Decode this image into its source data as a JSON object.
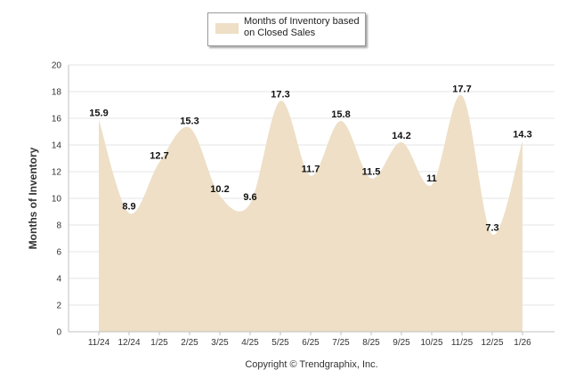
{
  "chart_data": {
    "type": "area",
    "categories": [
      "11/24",
      "12/24",
      "1/25",
      "2/25",
      "3/25",
      "4/25",
      "5/25",
      "6/25",
      "7/25",
      "8/25",
      "9/25",
      "10/25",
      "11/25",
      "12/25",
      "1/26"
    ],
    "series": [
      {
        "name": "Months of Inventory based on Closed Sales",
        "values": [
          15.9,
          8.9,
          12.7,
          15.3,
          10.2,
          9.6,
          17.3,
          11.7,
          15.8,
          11.5,
          14.2,
          11,
          17.7,
          7.3,
          14.3
        ],
        "labels": [
          "15.9",
          "8.9",
          "12.7",
          "15.3",
          "10.2",
          "9.6",
          "17.3",
          "11.7",
          "15.8",
          "11.5",
          "14.2",
          "11",
          "17.7",
          "7.3",
          "14.3"
        ],
        "color": "#eedfc6"
      }
    ],
    "yticks": [
      "0",
      "2",
      "4",
      "6",
      "8",
      "10",
      "12",
      "14",
      "16",
      "18",
      "20"
    ],
    "ylim": [
      0,
      20
    ],
    "ylabel": "Months of Inventory",
    "xlabel": "",
    "grid": true,
    "legend_position": "top-center"
  },
  "footer": "Copyright © Trendgraphix, Inc."
}
